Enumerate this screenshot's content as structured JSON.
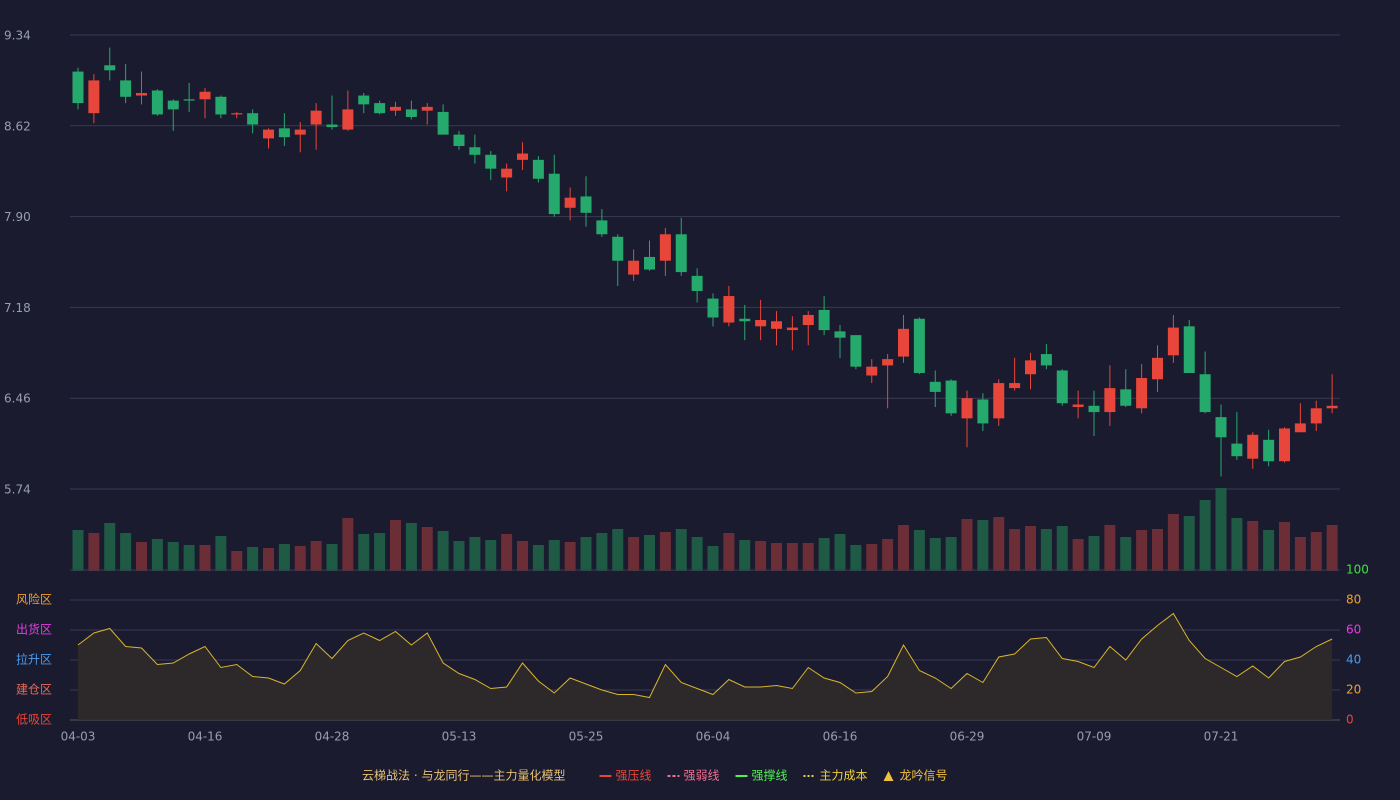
{
  "chart_data": [
    {
      "type": "candlestick",
      "up_color": "#e8463a",
      "down_color": "#26a96c",
      "categories": [
        "04-03",
        null,
        null,
        null,
        null,
        null,
        null,
        null,
        "04-16",
        null,
        null,
        null,
        null,
        null,
        null,
        null,
        "04-28",
        null,
        null,
        null,
        null,
        null,
        null,
        null,
        "05-13",
        null,
        null,
        null,
        null,
        null,
        null,
        null,
        "05-25",
        null,
        null,
        null,
        null,
        null,
        null,
        null,
        "06-04",
        null,
        null,
        null,
        null,
        null,
        null,
        null,
        "06-16",
        null,
        null,
        null,
        null,
        null,
        null,
        null,
        "06-29",
        null,
        null,
        null,
        null,
        null,
        null,
        null,
        "07-09",
        null,
        null,
        null,
        null,
        null,
        null,
        null,
        "07-21",
        null,
        null,
        null,
        null,
        null,
        null,
        null
      ],
      "open": [
        9.05,
        8.72,
        9.1,
        8.98,
        8.86,
        8.9,
        8.82,
        8.83,
        8.83,
        8.85,
        8.71,
        8.72,
        8.52,
        8.6,
        8.55,
        8.63,
        8.63,
        8.59,
        8.86,
        8.8,
        8.74,
        8.75,
        8.74,
        8.73,
        8.55,
        8.45,
        8.39,
        8.21,
        8.35,
        8.35,
        8.24,
        7.97,
        8.06,
        7.87,
        7.74,
        7.44,
        7.58,
        7.55,
        7.76,
        7.43,
        7.25,
        7.06,
        7.09,
        7.03,
        7.01,
        7.0,
        7.04,
        7.16,
        6.99,
        6.96,
        6.64,
        6.72,
        6.79,
        7.09,
        6.59,
        6.6,
        6.3,
        6.45,
        6.3,
        6.54,
        6.65,
        6.81,
        6.68,
        6.39,
        6.4,
        6.35,
        6.53,
        6.38,
        6.61,
        6.8,
        7.03,
        6.65,
        6.31,
        6.1,
        5.98,
        6.13,
        5.96,
        6.19,
        6.26,
        6.38
      ],
      "high": [
        9.08,
        9.03,
        9.24,
        9.11,
        9.05,
        8.91,
        8.83,
        8.96,
        8.92,
        8.86,
        8.73,
        8.75,
        8.6,
        8.72,
        8.65,
        8.8,
        8.86,
        8.9,
        8.88,
        8.82,
        8.81,
        8.82,
        8.8,
        8.79,
        8.58,
        8.55,
        8.42,
        8.32,
        8.49,
        8.38,
        8.39,
        8.13,
        8.22,
        7.96,
        7.76,
        7.64,
        7.71,
        7.81,
        7.89,
        7.49,
        7.29,
        7.35,
        7.2,
        7.24,
        7.15,
        7.11,
        7.15,
        7.27,
        7.04,
        6.96,
        6.77,
        6.81,
        7.12,
        7.1,
        6.68,
        6.61,
        6.52,
        6.5,
        6.61,
        6.78,
        6.82,
        6.89,
        6.69,
        6.52,
        6.52,
        6.72,
        6.69,
        6.73,
        6.88,
        7.12,
        7.08,
        6.83,
        6.41,
        6.35,
        6.19,
        6.21,
        6.23,
        6.42,
        6.44,
        6.65
      ],
      "low": [
        8.75,
        8.64,
        8.98,
        8.8,
        8.79,
        8.7,
        8.58,
        8.73,
        8.68,
        8.68,
        8.68,
        8.56,
        8.44,
        8.46,
        8.41,
        8.43,
        8.59,
        8.58,
        8.72,
        8.71,
        8.7,
        8.67,
        8.63,
        8.55,
        8.43,
        8.32,
        8.19,
        8.1,
        8.27,
        8.17,
        7.9,
        7.87,
        7.82,
        7.74,
        7.35,
        7.39,
        7.47,
        7.43,
        7.43,
        7.22,
        7.03,
        7.03,
        6.92,
        6.92,
        6.88,
        6.84,
        6.88,
        6.96,
        6.78,
        6.69,
        6.58,
        6.38,
        6.74,
        6.65,
        6.39,
        6.32,
        6.07,
        6.2,
        6.24,
        6.52,
        6.53,
        6.69,
        6.4,
        6.3,
        6.16,
        6.24,
        6.39,
        6.34,
        6.51,
        6.74,
        6.66,
        6.34,
        5.84,
        5.97,
        5.9,
        5.92,
        5.95,
        6.19,
        6.2,
        6.34
      ],
      "close": [
        8.8,
        8.98,
        9.06,
        8.85,
        8.88,
        8.71,
        8.75,
        8.82,
        8.89,
        8.71,
        8.72,
        8.63,
        8.59,
        8.53,
        8.59,
        8.74,
        8.61,
        8.75,
        8.79,
        8.72,
        8.77,
        8.69,
        8.77,
        8.55,
        8.46,
        8.39,
        8.28,
        8.28,
        8.4,
        8.2,
        7.92,
        8.05,
        7.93,
        7.76,
        7.55,
        7.55,
        7.48,
        7.76,
        7.46,
        7.31,
        7.1,
        7.27,
        7.07,
        7.08,
        7.07,
        7.02,
        7.12,
        7.0,
        6.94,
        6.71,
        6.71,
        6.77,
        7.01,
        6.66,
        6.51,
        6.34,
        6.46,
        6.26,
        6.58,
        6.58,
        6.76,
        6.72,
        6.42,
        6.41,
        6.35,
        6.54,
        6.4,
        6.62,
        6.78,
        7.02,
        6.66,
        6.35,
        6.15,
        6.0,
        6.17,
        5.96,
        6.22,
        6.26,
        6.38,
        6.4
      ],
      "ylim": [
        5.74,
        9.34
      ],
      "yticks": [
        9.34,
        8.62,
        {
          "value": 7.9,
          "label": "7.90"
        },
        7.18,
        6.46,
        5.74
      ],
      "grid": true
    },
    {
      "type": "bar",
      "up_color": "#6b2e36",
      "down_color": "#1f5a45",
      "values": [
        41,
        38,
        48,
        38,
        29,
        32,
        29,
        26,
        26,
        35,
        20,
        24,
        23,
        27,
        25,
        30,
        27,
        53,
        37,
        38,
        51,
        48,
        44,
        40,
        30,
        34,
        31,
        37,
        30,
        26,
        31,
        29,
        34,
        38,
        42,
        34,
        36,
        39,
        42,
        34,
        25,
        38,
        31,
        30,
        28,
        28,
        28,
        33,
        37,
        26,
        27,
        32,
        46,
        41,
        33,
        34,
        52,
        51,
        54,
        42,
        45,
        42,
        45,
        32,
        35,
        46,
        34,
        41,
        42,
        57,
        55,
        71,
        83,
        53,
        50,
        41,
        49,
        34,
        39,
        46
      ]
    },
    {
      "type": "line",
      "color": "#d9b52c",
      "fill": "#302a2a",
      "values": [
        50,
        58,
        61,
        49,
        48,
        37,
        38,
        44,
        49,
        35,
        37,
        29,
        28,
        24,
        33,
        51,
        41,
        53,
        58,
        53,
        59,
        50,
        58,
        38,
        31,
        27,
        21,
        22,
        38,
        26,
        18,
        28,
        24,
        20,
        17,
        17,
        15,
        37,
        25,
        21,
        17,
        27,
        22,
        22,
        23,
        21,
        35,
        28,
        25,
        18,
        19,
        29,
        50,
        33,
        28,
        21,
        31,
        25,
        42,
        44,
        54,
        55,
        41,
        39,
        35,
        49,
        40,
        54,
        63,
        71,
        53,
        41,
        35,
        29,
        36,
        28,
        39,
        42,
        49,
        54
      ],
      "ylim": [
        0,
        100
      ],
      "yticks": [
        0,
        20,
        40,
        60,
        80,
        100
      ],
      "ytick_colors": [
        "#e8463a",
        "#f0a030",
        "#4a9cf0",
        "#e040e0",
        "#f0a030",
        "#40e040"
      ],
      "zones": [
        {
          "label": "风险区",
          "value": 80,
          "color": "#f0a030"
        },
        {
          "label": "出货区",
          "value": 60,
          "color": "#e040e0"
        },
        {
          "label": "拉升区",
          "value": 40,
          "color": "#4a9cf0"
        },
        {
          "label": "建仓区",
          "value": 20,
          "color": "#e86a5a"
        },
        {
          "label": "低吸区",
          "value": 0,
          "color": "#e8463a"
        }
      ],
      "grid": true
    }
  ],
  "legend": {
    "title": "云梯战法 · 与龙同行——主力量化模型",
    "title_color": "#e8c070",
    "items": [
      {
        "name": "强压线",
        "color": "#e8463a",
        "style": "solid"
      },
      {
        "name": "强弱线",
        "color": "#f07090",
        "style": "dashed"
      },
      {
        "name": "强撑线",
        "color": "#50f050",
        "style": "solid"
      },
      {
        "name": "主力成本",
        "color": "#f0d040",
        "style": "dotted"
      },
      {
        "name": "龙吟信号",
        "color": "#f0c040",
        "style": "triangle"
      }
    ]
  }
}
